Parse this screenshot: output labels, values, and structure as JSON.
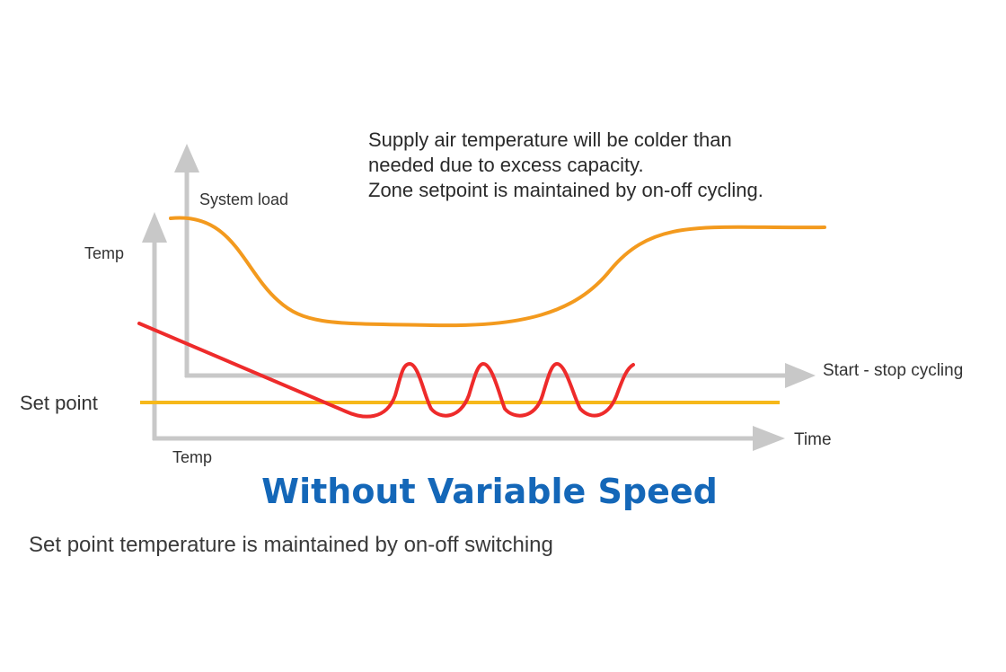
{
  "annotation": {
    "lines": [
      "Supply air temperature will be colder than",
      "needed due to excess capacity.",
      "Zone setpoint is maintained by on-off cycling."
    ]
  },
  "labels": {
    "system_load": "System load",
    "temp_upper": "Temp",
    "set_point": "Set point",
    "temp_lower": "Temp",
    "start_stop": "Start - stop cycling",
    "time": "Time"
  },
  "title": "Without Variable Speed",
  "caption": "Set point temperature is maintained by on-off switching",
  "colors": {
    "axis": "#c8c8c8",
    "system_load_curve": "#f39a1e",
    "temp_curve": "#ee2b2b",
    "set_point_line": "#f6b81a",
    "title": "#1467b8"
  }
}
